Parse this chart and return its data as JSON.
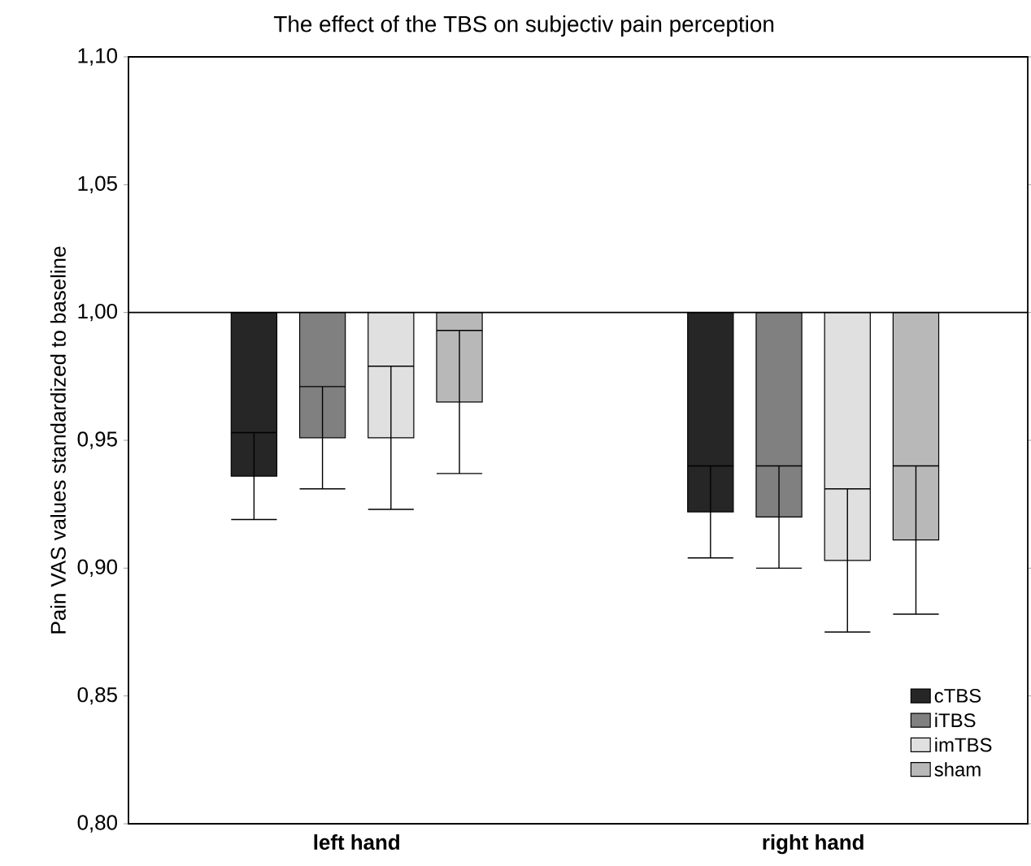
{
  "chart_data": {
    "type": "bar",
    "title": "The effect of the TBS on subjectiv pain perception",
    "ylabel": "Pain VAS values standardized to baseline",
    "categories": [
      "left hand",
      "right hand"
    ],
    "series": [
      {
        "name": "cTBS",
        "color": "#262626",
        "base": [
          1.0,
          1.0
        ],
        "values": [
          -0.064,
          -0.078
        ],
        "errors": [
          0.017,
          0.018
        ]
      },
      {
        "name": "iTBS",
        "color": "#808080",
        "base": [
          1.0,
          1.0
        ],
        "values": [
          -0.049,
          -0.08
        ],
        "errors": [
          0.02,
          0.02
        ]
      },
      {
        "name": "imTBS",
        "color": "#e0e0e0",
        "base": [
          1.0,
          1.0
        ],
        "values": [
          -0.049,
          -0.097
        ],
        "errors": [
          0.028,
          0.028
        ]
      },
      {
        "name": "sham",
        "color": "#b8b8b8",
        "base": [
          1.0,
          1.0
        ],
        "values": [
          -0.035,
          -0.089
        ],
        "errors": [
          0.028,
          0.029
        ]
      }
    ],
    "ylim": [
      0.8,
      1.1
    ],
    "yticks": [
      {
        "value": 0.8,
        "label": "0,80"
      },
      {
        "value": 0.85,
        "label": "0,85"
      },
      {
        "value": 0.9,
        "label": "0,90"
      },
      {
        "value": 0.95,
        "label": "0,95"
      },
      {
        "value": 1.0,
        "label": "1,00"
      },
      {
        "value": 1.05,
        "label": "1,05"
      },
      {
        "value": 1.1,
        "label": "1,10"
      }
    ],
    "ref_lines": [
      {
        "axis": "y",
        "value": 1.0,
        "color": "#000000"
      }
    ],
    "legend": "bottom right"
  }
}
